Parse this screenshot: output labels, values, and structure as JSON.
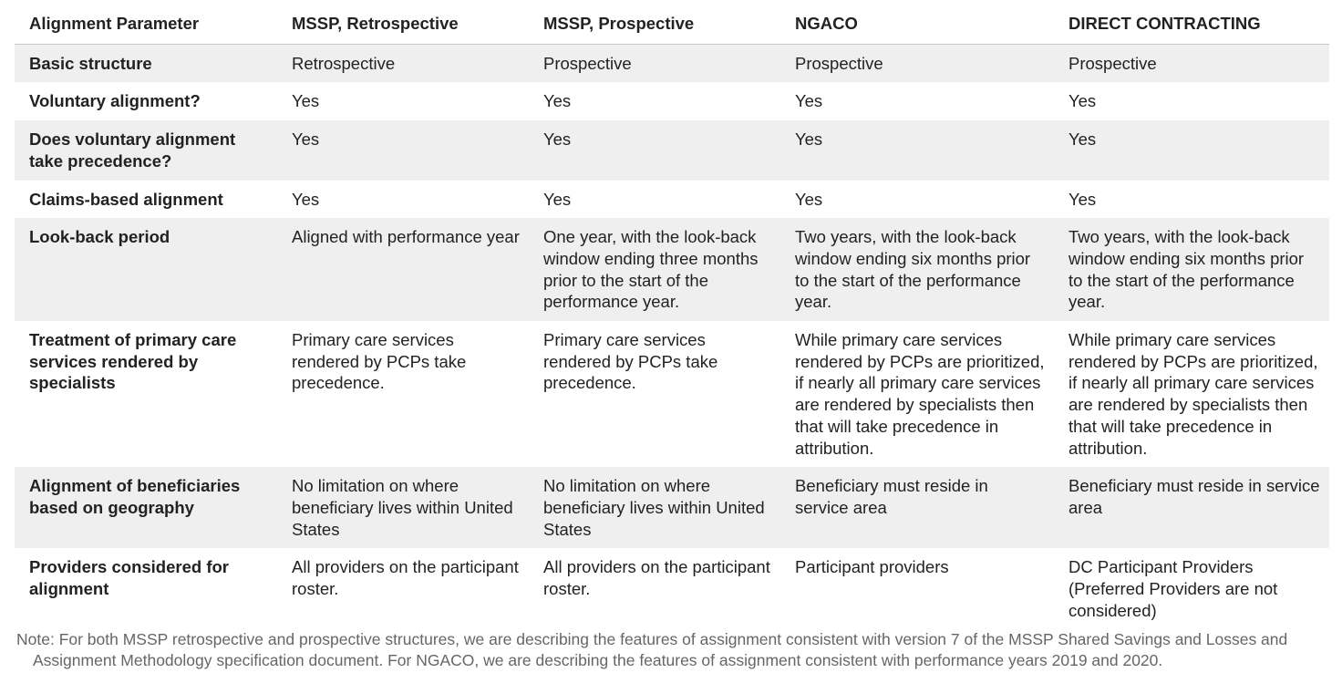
{
  "table": {
    "headers": [
      "Alignment Parameter",
      "MSSP, Retrospective",
      "MSSP, Prospective",
      "NGACO",
      "DIRECT CONTRACTING"
    ],
    "rows": [
      [
        "Basic structure",
        "Retrospective",
        "Prospective",
        "Prospective",
        "Prospective"
      ],
      [
        "Voluntary alignment?",
        "Yes",
        "Yes",
        "Yes",
        "Yes"
      ],
      [
        "Does voluntary alignment take precedence?",
        "Yes",
        "Yes",
        "Yes",
        "Yes"
      ],
      [
        "Claims-based alignment",
        "Yes",
        "Yes",
        "Yes",
        "Yes"
      ],
      [
        "Look-back period",
        "Aligned with performance year",
        "One year, with the look-back window ending three months prior to the start of the performance year.",
        "Two years, with the look-back window ending six months prior to the start of the performance year.",
        "Two years, with the look-back window ending six months prior to the start of the performance year."
      ],
      [
        "Treatment of primary care services rendered by specialists",
        "Primary care services rendered by PCPs take precedence.",
        "Primary care services rendered by PCPs take precedence.",
        "While primary care services rendered by PCPs are prioritized, if nearly all primary care services are rendered by specialists then that will take precedence in attribution.",
        "While primary care services rendered by PCPs are prioritized, if nearly all primary care services are rendered by specialists then that will take precedence in attribution."
      ],
      [
        "Alignment of beneficiaries based on geography",
        "No limitation on where beneficiary lives within United States",
        "No limitation on where beneficiary lives within United States",
        "Beneficiary must reside in service area",
        "Beneficiary must reside in service area"
      ],
      [
        "Providers considered for alignment",
        "All providers on the participant roster.",
        "All providers on the participant roster.",
        "Participant providers",
        "DC Participant Providers (Preferred Providers are not considered)"
      ]
    ]
  },
  "note": "Note: For both MSSP retrospective and prospective structures, we are describing the features of assignment consistent with version 7 of the MSSP Shared Savings and Losses and Assignment Methodology specification document. For NGACO, we are describing the features of assignment consistent with performance years 2019 and 2020.",
  "colors": {
    "row_shade": "#efefef",
    "text": "#222222",
    "note_text": "#666666"
  }
}
